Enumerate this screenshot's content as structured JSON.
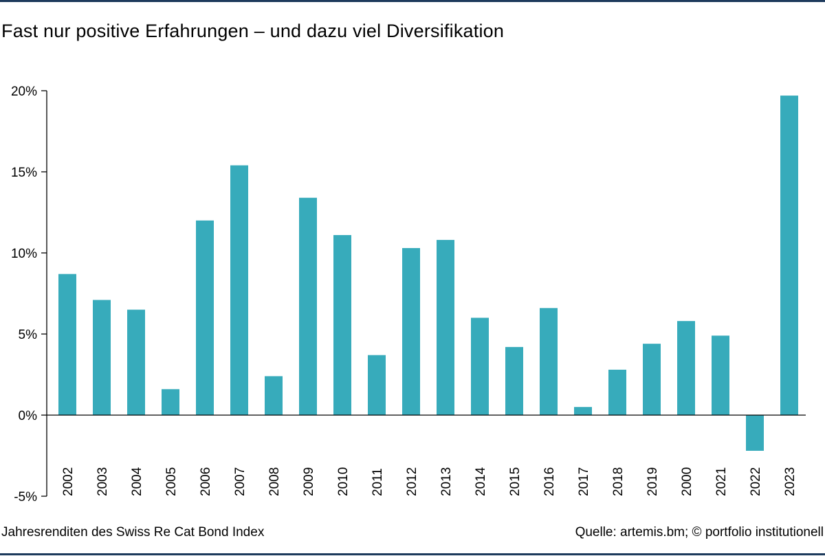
{
  "title": "Fast nur positive Erfahrungen – und dazu viel Diversifikation",
  "caption_left": "Jahresrenditen des Swiss Re Cat Bond Index",
  "caption_right": "Quelle: artemis.bm; © portfolio institutionell",
  "colors": {
    "bar": "#37abbb",
    "rule": "#1d3a5c",
    "axis": "#000000"
  },
  "chart_data": {
    "type": "bar",
    "categories": [
      "2002",
      "2003",
      "2004",
      "2005",
      "2006",
      "2007",
      "2008",
      "2009",
      "2010",
      "2011",
      "2012",
      "2013",
      "2014",
      "2015",
      "2016",
      "2017",
      "2018",
      "2019",
      "2000",
      "2021",
      "2022",
      "2023"
    ],
    "values": [
      8.7,
      7.1,
      6.5,
      1.6,
      12.0,
      15.4,
      2.4,
      13.4,
      11.1,
      3.7,
      10.3,
      10.8,
      6.0,
      4.2,
      6.6,
      0.5,
      2.8,
      4.4,
      5.8,
      4.9,
      -2.2,
      19.7
    ],
    "yticks": [
      20,
      15,
      10,
      5,
      0,
      -5
    ],
    "ytick_labels": [
      "20%",
      "15%",
      "10%",
      "5%",
      "0%",
      "-5%"
    ],
    "ylim": [
      -5,
      20
    ],
    "xlabel": "",
    "ylabel": "",
    "grid": false,
    "legend": "none"
  }
}
